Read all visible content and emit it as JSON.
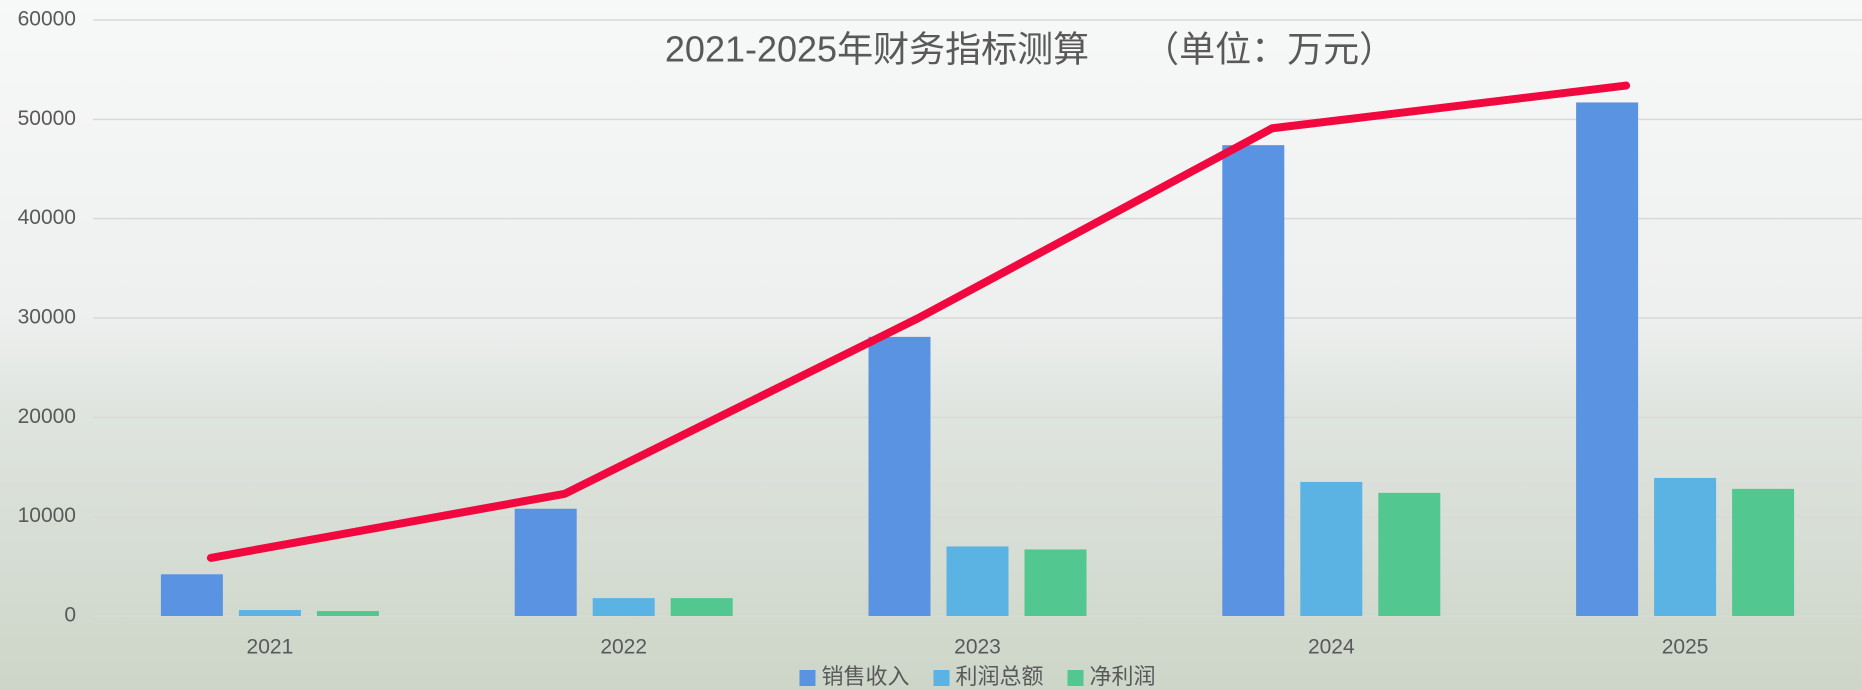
{
  "chart_data": {
    "type": "bar",
    "title": "2021-2025年财务指标测算　　（单位：万元）",
    "categories": [
      "2021",
      "2022",
      "2023",
      "2024",
      "2025"
    ],
    "series": [
      {
        "name": "销售收入",
        "color": "#5b93e3",
        "values": [
          4200,
          10800,
          28100,
          47400,
          51700
        ]
      },
      {
        "name": "利润总额",
        "color": "#5ab3e3",
        "values": [
          600,
          1800,
          7000,
          13500,
          13900
        ]
      },
      {
        "name": "净利润",
        "color": "#52c78f",
        "values": [
          500,
          1800,
          6700,
          12400,
          12800
        ]
      },
      {
        "type": "line",
        "color": "#f0083f",
        "values": [
          5850,
          12300,
          30000,
          49100,
          53400
        ]
      }
    ],
    "ylim": [
      0,
      60000
    ],
    "yticks": [
      0,
      10000,
      20000,
      30000,
      40000,
      50000,
      60000
    ],
    "grid": true,
    "legend": "bottom"
  }
}
